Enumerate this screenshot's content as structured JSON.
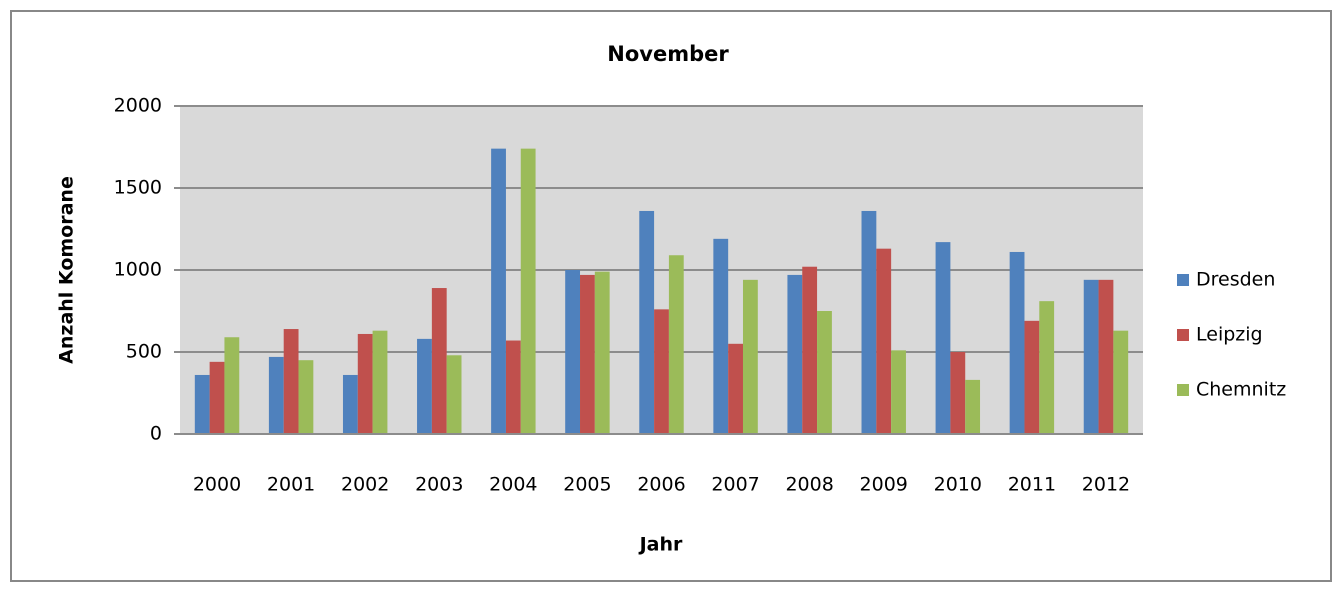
{
  "chart_data": {
    "type": "bar",
    "title": "November",
    "x_label": "Jahr",
    "y_label": "Anzahl Komorane",
    "categories": [
      "2000",
      "2001",
      "2002",
      "2003",
      "2004",
      "2005",
      "2006",
      "2007",
      "2008",
      "2009",
      "2010",
      "2011",
      "2012"
    ],
    "series": [
      {
        "name": "Dresden",
        "color": "#4f81bd",
        "values": [
          360,
          470,
          360,
          580,
          1740,
          1000,
          1360,
          1190,
          970,
          1360,
          1170,
          1110,
          940
        ]
      },
      {
        "name": "Leipzig",
        "color": "#c0504d",
        "values": [
          440,
          640,
          610,
          890,
          570,
          970,
          760,
          550,
          1020,
          1130,
          500,
          690,
          940
        ]
      },
      {
        "name": "Chemnitz",
        "color": "#9bbb59",
        "values": [
          590,
          450,
          630,
          480,
          1740,
          990,
          1090,
          940,
          750,
          510,
          330,
          810,
          630
        ]
      }
    ],
    "ylim": [
      0,
      2000
    ],
    "yticks": [
      0,
      500,
      1000,
      1500,
      2000
    ],
    "grid": true,
    "legend": "right"
  }
}
